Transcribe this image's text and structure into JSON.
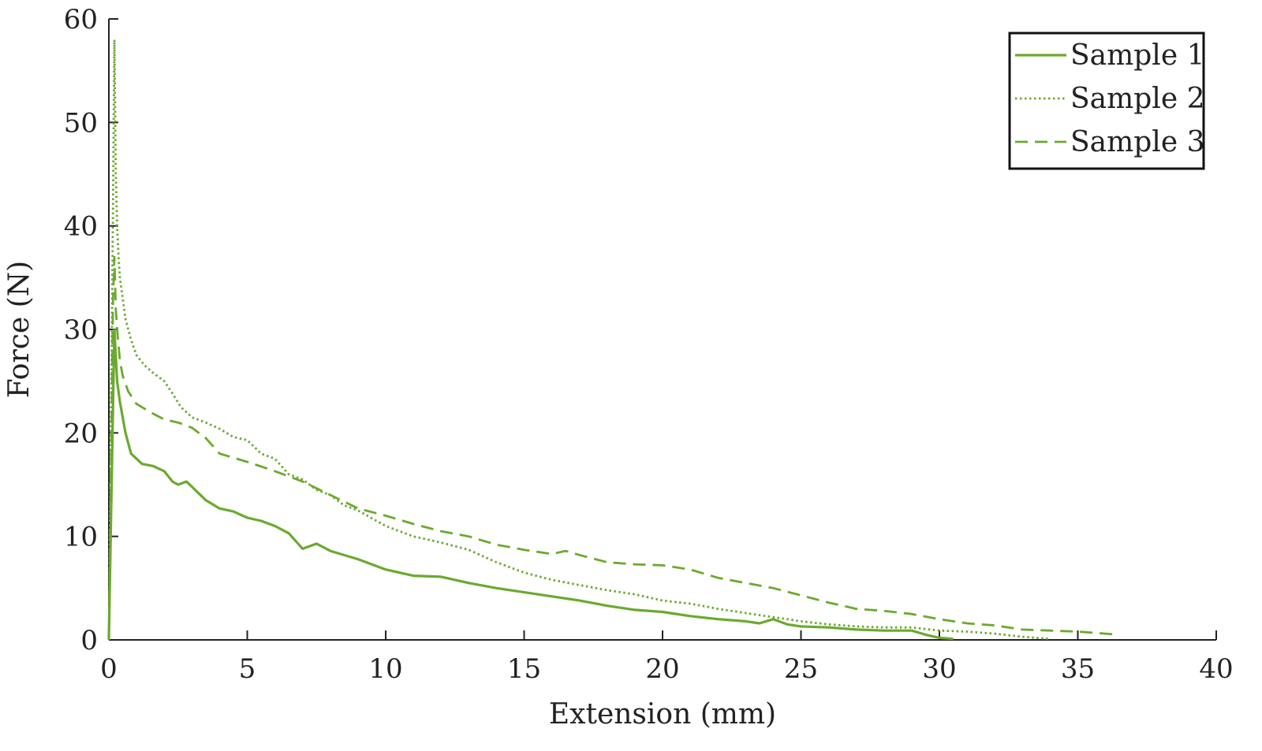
{
  "chart_data": {
    "type": "line",
    "xlabel": "Extension (mm)",
    "ylabel": "Force (N)",
    "xlim": [
      0,
      40
    ],
    "ylim": [
      0,
      60
    ],
    "xticks": [
      0,
      5,
      10,
      15,
      20,
      25,
      30,
      35,
      40
    ],
    "yticks": [
      0,
      10,
      20,
      30,
      40,
      50,
      60
    ],
    "grid": false,
    "legend_position": "top-right",
    "line_color": "#6aaa2e",
    "series": [
      {
        "name": "Sample 1",
        "style": "solid",
        "x": [
          0,
          0.2,
          0.3,
          0.4,
          0.6,
          0.8,
          1.2,
          1.6,
          2.0,
          2.3,
          2.5,
          2.8,
          3.0,
          3.5,
          4.0,
          4.5,
          5.0,
          5.5,
          6.0,
          6.5,
          7.0,
          7.5,
          8.0,
          9.0,
          10.0,
          11.0,
          12.0,
          13.0,
          14.0,
          15.0,
          16.0,
          17.0,
          18.0,
          19.0,
          20.0,
          21.0,
          22.0,
          23.0,
          23.5,
          24.0,
          24.5,
          25.0,
          26.0,
          27.0,
          28.0,
          29.0,
          29.5,
          30.0,
          30.5
        ],
        "y": [
          0,
          30,
          25,
          23,
          20,
          18,
          17,
          16.8,
          16.3,
          15.3,
          15.0,
          15.3,
          14.8,
          13.5,
          12.7,
          12.4,
          11.8,
          11.5,
          11.0,
          10.3,
          8.8,
          9.3,
          8.6,
          7.8,
          6.8,
          6.2,
          6.1,
          5.5,
          5.0,
          4.6,
          4.2,
          3.8,
          3.3,
          2.9,
          2.7,
          2.3,
          2.0,
          1.8,
          1.6,
          2.0,
          1.5,
          1.3,
          1.2,
          1.0,
          0.9,
          0.9,
          0.5,
          0.2,
          0.1
        ]
      },
      {
        "name": "Sample 2",
        "style": "dotted",
        "x": [
          0,
          0.15,
          0.2,
          0.25,
          0.3,
          0.35,
          0.4,
          0.6,
          0.8,
          1.0,
          1.3,
          1.6,
          2.0,
          2.3,
          2.6,
          3.0,
          3.5,
          4.0,
          4.5,
          5.0,
          5.5,
          6.0,
          6.5,
          7.0,
          7.5,
          8.0,
          8.5,
          9.0,
          10.0,
          11.0,
          12.0,
          13.0,
          14.0,
          15.0,
          16.0,
          17.0,
          18.0,
          19.0,
          20.0,
          21.0,
          22.0,
          23.0,
          24.0,
          25.0,
          26.0,
          27.0,
          28.0,
          29.0,
          30.0,
          31.0,
          32.0,
          33.0,
          34.0
        ],
        "y": [
          0,
          42,
          58,
          45,
          40,
          37,
          35,
          31,
          29,
          27.5,
          26.5,
          25.8,
          25.0,
          23.8,
          22.5,
          21.5,
          21.0,
          20.4,
          19.6,
          19.3,
          18.0,
          17.5,
          16.0,
          15.5,
          14.5,
          14.0,
          13.0,
          12.5,
          11.0,
          10.0,
          9.4,
          8.7,
          7.5,
          6.5,
          5.8,
          5.3,
          4.8,
          4.4,
          3.8,
          3.5,
          3.0,
          2.6,
          2.2,
          1.8,
          1.5,
          1.3,
          1.2,
          1.2,
          0.9,
          0.8,
          0.6,
          0.3,
          0.1
        ]
      },
      {
        "name": "Sample 3",
        "style": "dashed",
        "x": [
          0,
          0.15,
          0.2,
          0.25,
          0.3,
          0.4,
          0.5,
          0.7,
          1.0,
          1.5,
          2.0,
          2.5,
          3.0,
          3.5,
          4.0,
          5.0,
          6.0,
          7.0,
          8.0,
          9.0,
          10.0,
          11.0,
          12.0,
          13.0,
          14.0,
          15.0,
          16.0,
          16.5,
          17.0,
          18.0,
          19.0,
          20.0,
          21.0,
          22.0,
          23.0,
          24.0,
          25.0,
          26.0,
          27.0,
          28.0,
          29.0,
          30.0,
          31.0,
          32.0,
          33.0,
          34.0,
          35.0,
          36.0,
          36.5
        ],
        "y": [
          0,
          33,
          37,
          32,
          30,
          27,
          25.5,
          24,
          22.8,
          22.0,
          21.3,
          21.0,
          20.5,
          19.5,
          18.0,
          17.2,
          16.3,
          15.3,
          14.0,
          12.7,
          12.0,
          11.2,
          10.5,
          10.0,
          9.2,
          8.7,
          8.3,
          8.6,
          8.2,
          7.5,
          7.3,
          7.2,
          6.8,
          6.0,
          5.5,
          5.0,
          4.3,
          3.6,
          3.0,
          2.8,
          2.5,
          2.0,
          1.6,
          1.4,
          1.0,
          0.9,
          0.8,
          0.6,
          0.5
        ]
      }
    ]
  }
}
